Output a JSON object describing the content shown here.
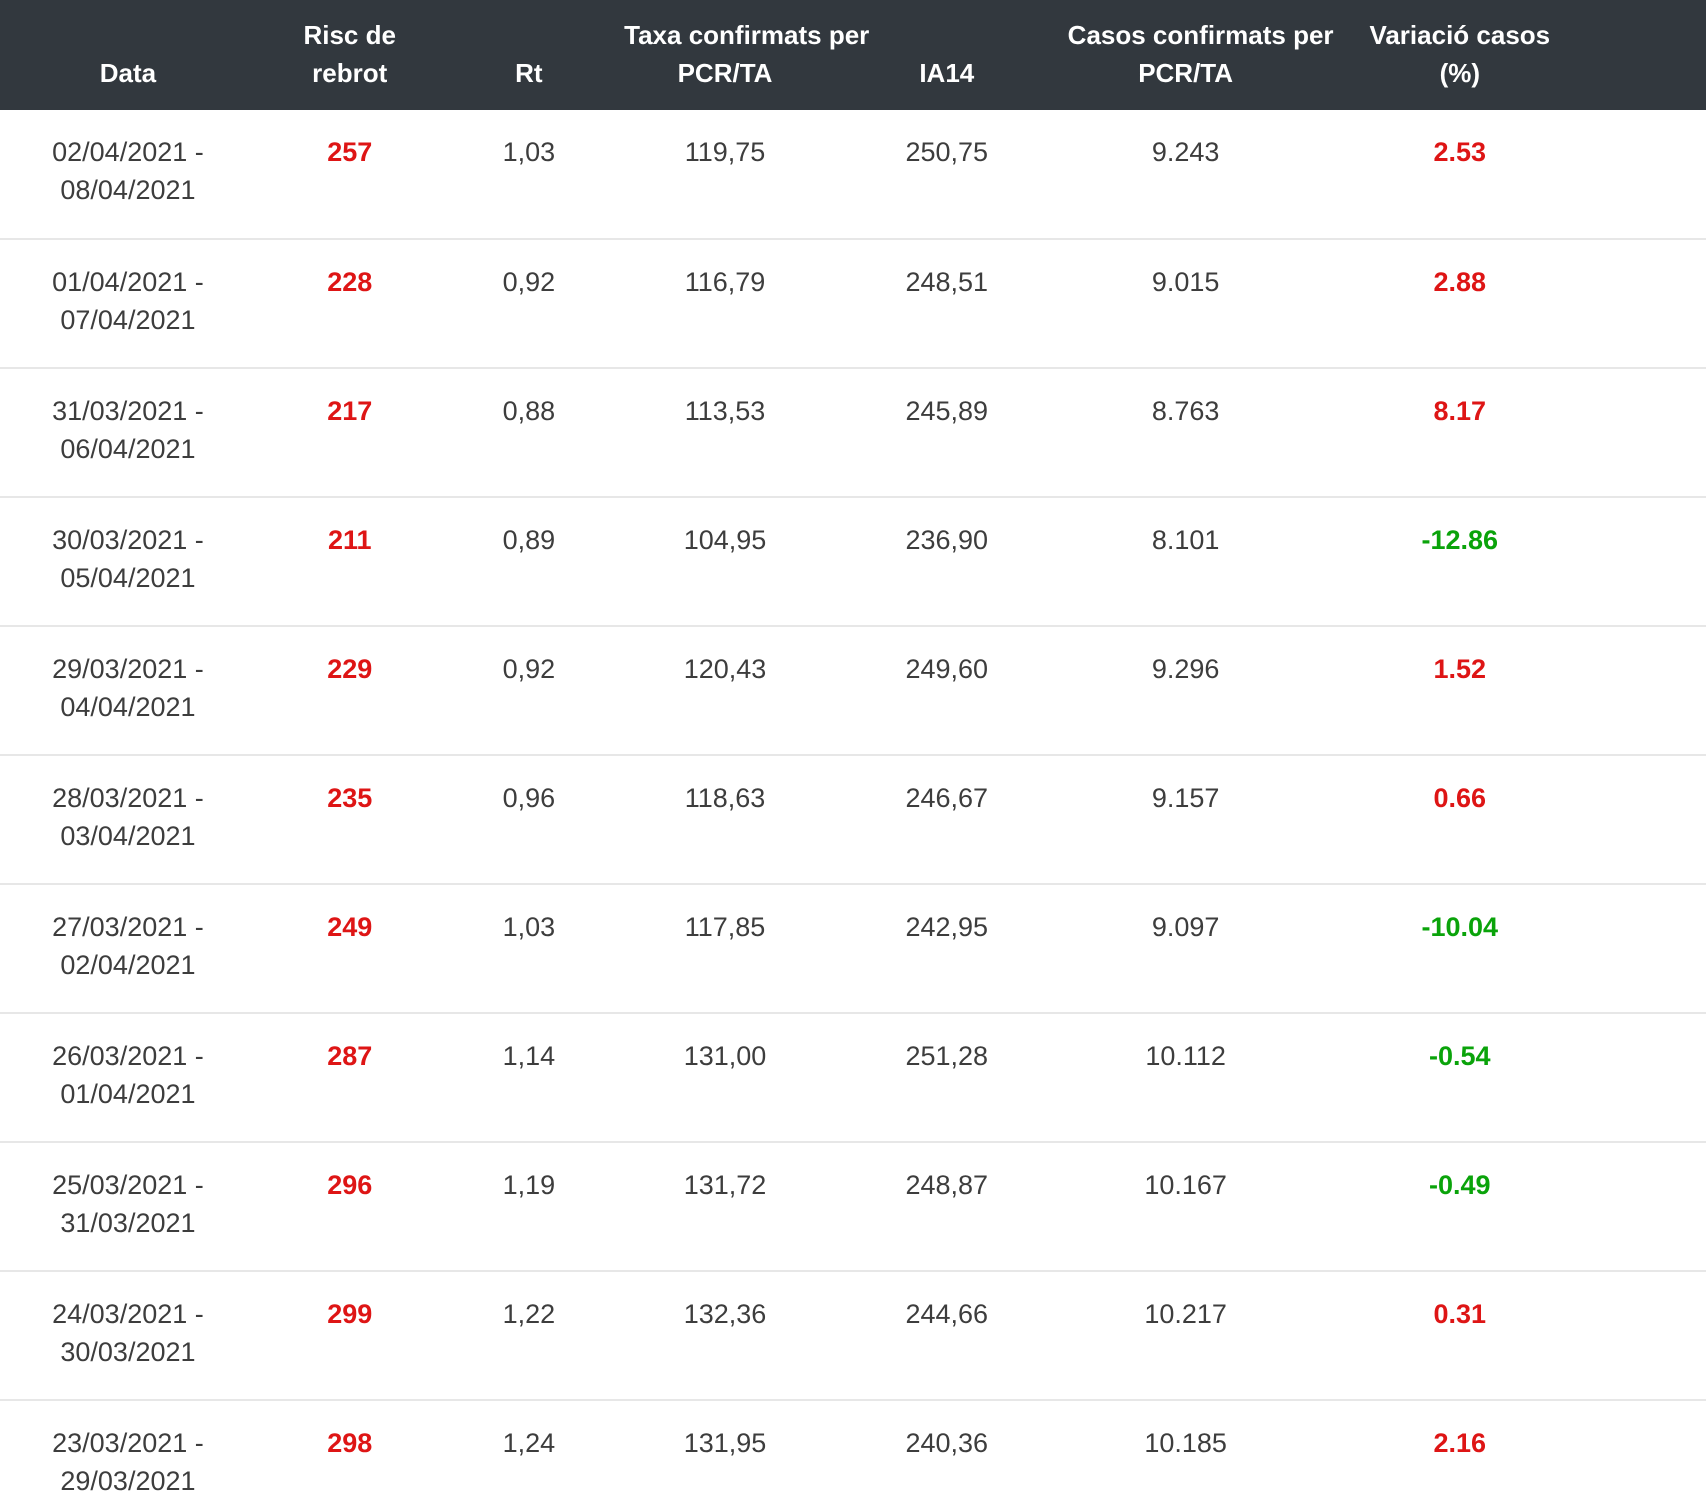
{
  "chart_data": {
    "type": "table",
    "title": "",
    "columns": [
      {
        "id": "data",
        "label": "Data",
        "lines": [
          "Data"
        ]
      },
      {
        "id": "risc",
        "label": "Risc de rebrot",
        "lines": [
          "Risc de",
          "rebrot"
        ]
      },
      {
        "id": "rt",
        "label": "Rt",
        "lines": [
          "Rt"
        ]
      },
      {
        "id": "taxa",
        "label": "Taxa confirmats per PCR/TA",
        "lines": [
          "Taxa confirmats per",
          "PCR/TA"
        ]
      },
      {
        "id": "ia14",
        "label": "IA14",
        "lines": [
          "IA14"
        ]
      },
      {
        "id": "casos",
        "label": "Casos confirmats per PCR/TA",
        "lines": [
          "Casos confirmats per",
          "PCR/TA"
        ]
      },
      {
        "id": "variacio",
        "label": "Variació casos (%)",
        "lines": [
          "Variació casos",
          "(%)"
        ]
      }
    ],
    "rows": [
      {
        "date_line1": "02/04/2021 -",
        "date_line2": "08/04/2021",
        "risc": "257",
        "rt": "1,03",
        "taxa": "119,75",
        "ia14": "250,75",
        "casos": "9.243",
        "variacio": "2.53",
        "trend": "up"
      },
      {
        "date_line1": "01/04/2021 -",
        "date_line2": "07/04/2021",
        "risc": "228",
        "rt": "0,92",
        "taxa": "116,79",
        "ia14": "248,51",
        "casos": "9.015",
        "variacio": "2.88",
        "trend": "up"
      },
      {
        "date_line1": "31/03/2021 -",
        "date_line2": "06/04/2021",
        "risc": "217",
        "rt": "0,88",
        "taxa": "113,53",
        "ia14": "245,89",
        "casos": "8.763",
        "variacio": "8.17",
        "trend": "up"
      },
      {
        "date_line1": "30/03/2021 -",
        "date_line2": "05/04/2021",
        "risc": "211",
        "rt": "0,89",
        "taxa": "104,95",
        "ia14": "236,90",
        "casos": "8.101",
        "variacio": "-12.86",
        "trend": "down"
      },
      {
        "date_line1": "29/03/2021 -",
        "date_line2": "04/04/2021",
        "risc": "229",
        "rt": "0,92",
        "taxa": "120,43",
        "ia14": "249,60",
        "casos": "9.296",
        "variacio": "1.52",
        "trend": "up"
      },
      {
        "date_line1": "28/03/2021 -",
        "date_line2": "03/04/2021",
        "risc": "235",
        "rt": "0,96",
        "taxa": "118,63",
        "ia14": "246,67",
        "casos": "9.157",
        "variacio": "0.66",
        "trend": "up"
      },
      {
        "date_line1": "27/03/2021 -",
        "date_line2": "02/04/2021",
        "risc": "249",
        "rt": "1,03",
        "taxa": "117,85",
        "ia14": "242,95",
        "casos": "9.097",
        "variacio": "-10.04",
        "trend": "down"
      },
      {
        "date_line1": "26/03/2021 -",
        "date_line2": "01/04/2021",
        "risc": "287",
        "rt": "1,14",
        "taxa": "131,00",
        "ia14": "251,28",
        "casos": "10.112",
        "variacio": "-0.54",
        "trend": "down"
      },
      {
        "date_line1": "25/03/2021 -",
        "date_line2": "31/03/2021",
        "risc": "296",
        "rt": "1,19",
        "taxa": "131,72",
        "ia14": "248,87",
        "casos": "10.167",
        "variacio": "-0.49",
        "trend": "down"
      },
      {
        "date_line1": "24/03/2021 -",
        "date_line2": "30/03/2021",
        "risc": "299",
        "rt": "1,22",
        "taxa": "132,36",
        "ia14": "244,66",
        "casos": "10.217",
        "variacio": "0.31",
        "trend": "up"
      },
      {
        "date_line1": "23/03/2021 -",
        "date_line2": "29/03/2021",
        "risc": "298",
        "rt": "1,24",
        "taxa": "131,95",
        "ia14": "240,36",
        "casos": "10.185",
        "variacio": "2.16",
        "trend": "up"
      }
    ]
  },
  "colors": {
    "header_bg": "#32383e",
    "header_text": "#ffffff",
    "body_text": "#3d3d3d",
    "increase_red": "#de1515",
    "decrease_green": "#0aa30a",
    "row_divider": "#e7e7e7",
    "row_bg": "#ffffff"
  }
}
